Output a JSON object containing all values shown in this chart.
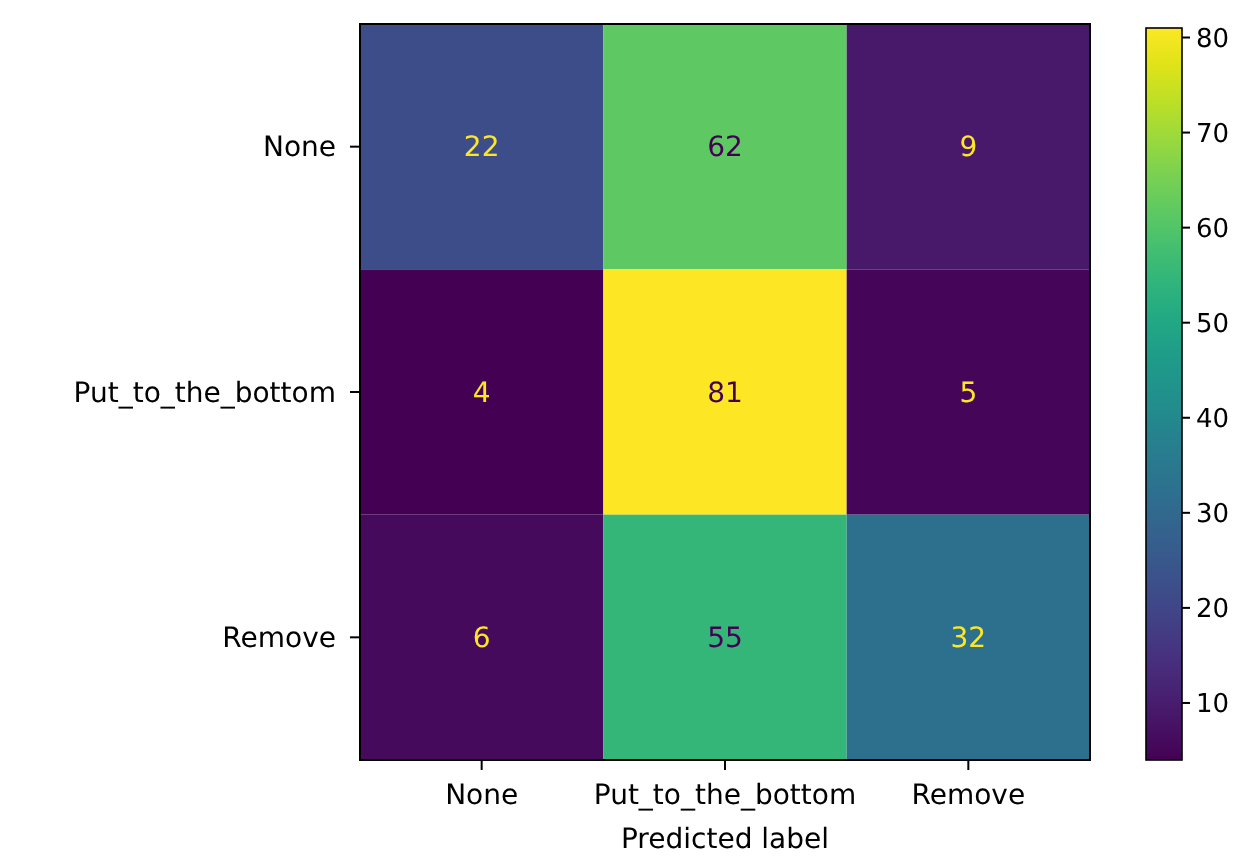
{
  "chart_data": {
    "type": "heatmap",
    "xlabel": "Predicted label",
    "categories": [
      "None",
      "Put_to_the_bottom",
      "Remove"
    ],
    "y_categories": [
      "None",
      "Put_to_the_bottom",
      "Remove"
    ],
    "cells": [
      [
        22,
        62,
        9
      ],
      [
        4,
        81,
        5
      ],
      [
        6,
        55,
        32
      ]
    ],
    "data_labels": true,
    "clim": [
      4,
      81
    ],
    "cticks": [
      10,
      20,
      30,
      40,
      50,
      60,
      70,
      80
    ]
  }
}
